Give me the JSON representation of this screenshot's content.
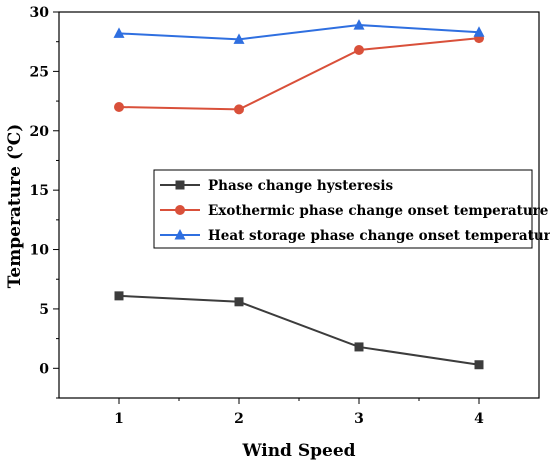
{
  "chart_data": {
    "type": "line",
    "title": "",
    "xlabel": "Wind Speed",
    "ylabel": "Temperature (℃)",
    "categories": [
      "1",
      "2",
      "3",
      "4"
    ],
    "x": [
      1,
      2,
      3,
      4
    ],
    "xlim": [
      0.5,
      4.5
    ],
    "ylim": [
      -2.5,
      30
    ],
    "yticks": [
      0,
      5,
      10,
      15,
      20,
      25,
      30
    ],
    "grid": false,
    "legend_position": "center-right",
    "series": [
      {
        "name": "Phase change hysteresis",
        "values": [
          6.1,
          5.6,
          1.8,
          0.3
        ],
        "color": "#3c3c3c",
        "marker": "square"
      },
      {
        "name": "Exothermic phase change onset temperature",
        "values": [
          22.0,
          21.8,
          26.8,
          27.8
        ],
        "color": "#d9503a",
        "marker": "circle"
      },
      {
        "name": "Heat storage phase change onset temperature",
        "values": [
          28.2,
          27.7,
          28.9,
          28.3
        ],
        "color": "#2f6fe0",
        "marker": "triangle"
      }
    ]
  }
}
